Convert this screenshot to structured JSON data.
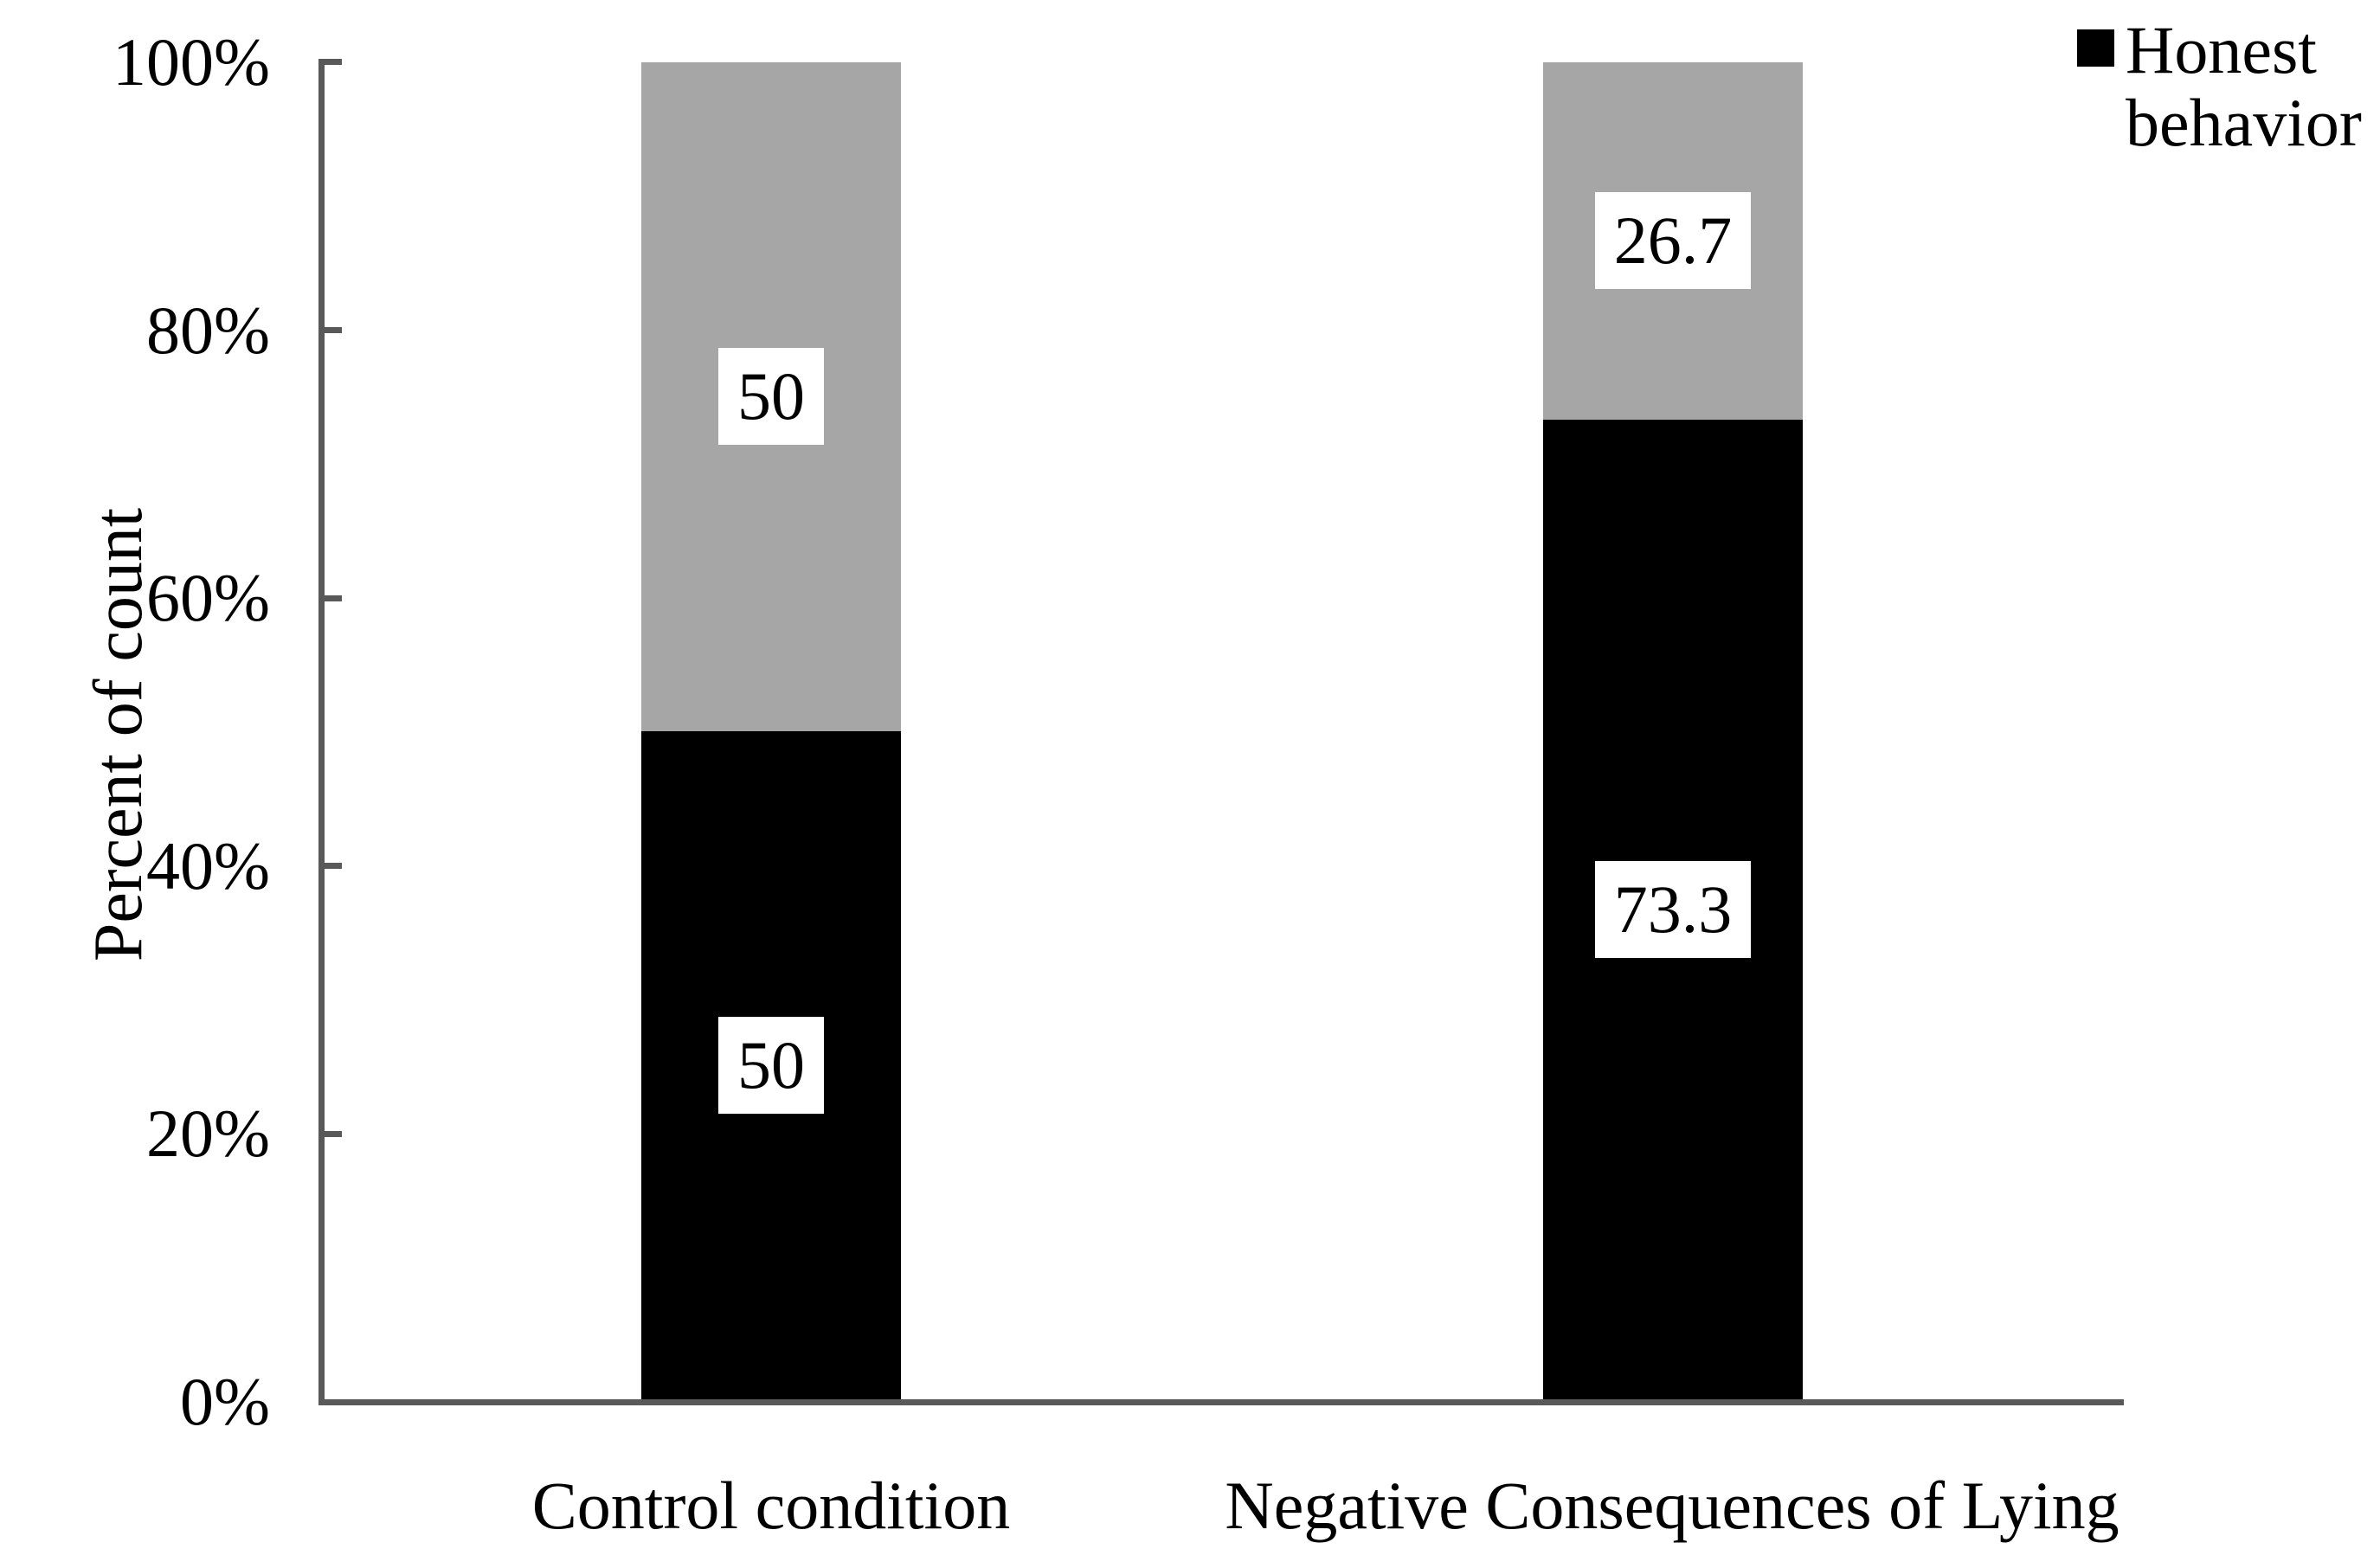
{
  "chart_data": {
    "type": "bar",
    "stacked": true,
    "orientation": "vertical",
    "title": "",
    "ylabel": "Percent of count",
    "xlabel": "",
    "ylim": [
      0,
      100
    ],
    "grid": false,
    "categories": [
      "Control condition",
      "Negative Consequences of Lying"
    ],
    "series": [
      {
        "name": "Honest behavior",
        "color": "#000000",
        "values": [
          50,
          73.3
        ]
      },
      {
        "name": "",
        "color": "#A6A6A6",
        "values": [
          50,
          26.7
        ]
      }
    ],
    "y_ticks": [
      "0%",
      "20%",
      "40%",
      "60%",
      "80%",
      "100%"
    ],
    "legend": {
      "position": "top-right",
      "entries": [
        "Honest behavior"
      ]
    },
    "data_label_box_color": "#FFFFFF",
    "axis_color": "#595959"
  }
}
